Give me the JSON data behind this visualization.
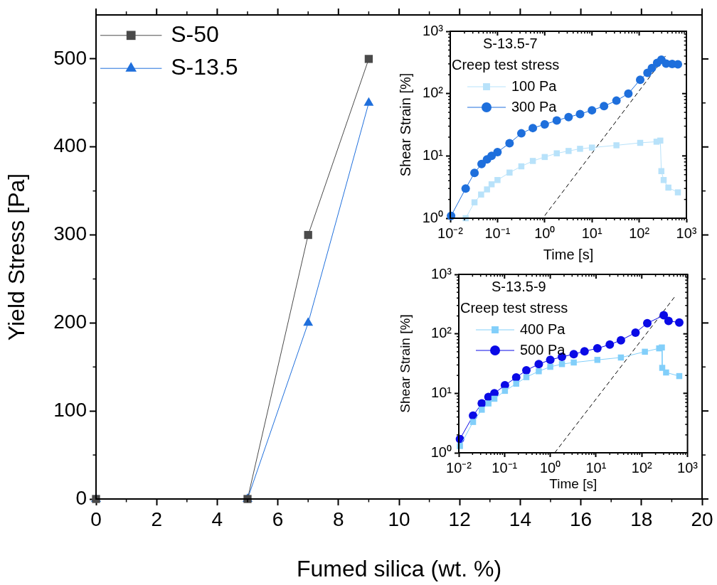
{
  "chart_data": [
    {
      "type": "line",
      "xlabel": "Fumed silica (wt. %)",
      "ylabel": "Yield Stress [Pa]",
      "xlim": [
        0,
        20
      ],
      "xticks": [
        0,
        2,
        4,
        6,
        8,
        10,
        12,
        14,
        16,
        18,
        20
      ],
      "ylim": [
        0,
        550
      ],
      "yticks": [
        0,
        100,
        200,
        300,
        400,
        500
      ],
      "grid": false,
      "legend": "top left",
      "x": [
        0,
        5,
        7,
        9
      ],
      "series": [
        {
          "name": "S-50",
          "color": "#4a4a4a",
          "marker": "square",
          "values": [
            0,
            0,
            300,
            500
          ]
        },
        {
          "name": "S-13.5",
          "color": "#1f6fdc",
          "marker": "triangle",
          "values": [
            0,
            0,
            200,
            450
          ]
        }
      ]
    },
    {
      "type": "line",
      "title": "S-13.5-7",
      "legend_title": "Creep test stress",
      "xlabel": "Time [s]",
      "ylabel": "Shear Strain [%]",
      "log": "xy",
      "xlim": [
        0.01,
        1000
      ],
      "ylim": [
        1,
        1000
      ],
      "xticks": [
        {
          "value": 0.01,
          "label": "10⁻²"
        },
        {
          "value": 0.1,
          "label": "10⁻¹"
        },
        {
          "value": 1,
          "label": "10⁰"
        },
        {
          "value": 10,
          "label": "10¹"
        },
        {
          "value": 100,
          "label": "10²"
        },
        {
          "value": 1000,
          "label": "10³"
        }
      ],
      "yticks": [
        {
          "value": 1,
          "label": "10⁰"
        },
        {
          "value": 10,
          "label": "10¹"
        },
        {
          "value": 100,
          "label": "10²"
        },
        {
          "value": 1000,
          "label": "10³"
        }
      ],
      "grid": false,
      "legend": "top left",
      "series": [
        {
          "name": "100 Pa",
          "color": "#b8e2fa",
          "marker": "square",
          "x": [
            0.0212,
            0.0326,
            0.045,
            0.06,
            0.075,
            0.1,
            0.18,
            0.32,
            0.56,
            1,
            1.8,
            3.2,
            5.6,
            10,
            33,
            105,
            233,
            280,
            295,
            330,
            415,
            660
          ],
          "values": [
            1,
            1.8,
            2.4,
            2.9,
            3.5,
            4.1,
            5.4,
            6.8,
            8.3,
            9.6,
            11,
            12,
            13,
            13.6,
            14.8,
            16.2,
            16.9,
            17.6,
            5.7,
            4.1,
            3.1,
            2.6
          ]
        },
        {
          "name": "300 Pa",
          "color": "#1e6fdc",
          "marker": "circle",
          "x": [
            0.0104,
            0.0212,
            0.0326,
            0.046,
            0.06,
            0.075,
            0.1,
            0.18,
            0.32,
            0.56,
            1,
            1.8,
            3.2,
            5.6,
            10,
            18,
            33,
            59,
            105,
            150,
            186,
            240,
            295,
            372,
            500,
            660
          ],
          "values": [
            1.09,
            3,
            5.35,
            7.4,
            8.8,
            10,
            11.5,
            16,
            23,
            28,
            32,
            37,
            42,
            47,
            54,
            63,
            77,
            100,
            167,
            215,
            257,
            310,
            350,
            302,
            298,
            295
          ]
        },
        {
          "type": "line",
          "color": "#000000",
          "marker": "none",
          "line_style": "dashed",
          "x": [
            1,
            360
          ],
          "values": [
            1.1,
            400
          ]
        }
      ]
    },
    {
      "type": "line",
      "title": "S-13.5-9",
      "legend_title": "Creep test stress",
      "xlabel": "Time [s]",
      "ylabel": "Shear Strain [%]",
      "log": "xy",
      "xlim": [
        0.01,
        1000
      ],
      "ylim": [
        1,
        1000
      ],
      "xticks": [
        {
          "value": 0.01,
          "label": "10⁻²"
        },
        {
          "value": 0.1,
          "label": "10⁻¹"
        },
        {
          "value": 1,
          "label": "10⁰"
        },
        {
          "value": 10,
          "label": "10¹"
        },
        {
          "value": 100,
          "label": "10²"
        },
        {
          "value": 1000,
          "label": "10³"
        }
      ],
      "yticks": [
        {
          "value": 1,
          "label": "10⁰"
        },
        {
          "value": 10,
          "label": "10¹"
        },
        {
          "value": 100,
          "label": "10²"
        },
        {
          "value": 1000,
          "label": "10³"
        }
      ],
      "grid": false,
      "legend": "top left",
      "series": [
        {
          "name": "400 Pa",
          "color": "#82cffa",
          "marker": "square",
          "x": [
            0.0106,
            0.0205,
            0.0318,
            0.0445,
            0.06,
            0.102,
            0.18,
            0.3,
            0.56,
            1,
            1.8,
            3.26,
            10.7,
            35,
            117,
            240,
            275,
            280,
            340,
            660
          ],
          "values": [
            1.3,
            3.3,
            5.3,
            6.75,
            8.1,
            11,
            14.5,
            18.7,
            23.5,
            27.9,
            31,
            33,
            36.5,
            40,
            50,
            57,
            59,
            26.8,
            22.4,
            19.5
          ]
        },
        {
          "name": "500 Pa",
          "color": "#0a0ae6",
          "marker": "circle",
          "x": [
            0.0106,
            0.0205,
            0.0318,
            0.0445,
            0.06,
            0.102,
            0.18,
            0.3,
            0.56,
            1,
            1.8,
            3.26,
            5.6,
            10.7,
            20,
            35,
            73,
            132,
            302,
            385,
            660
          ],
          "values": [
            1.7,
            4.2,
            6.75,
            8.65,
            10,
            13.7,
            18.5,
            24.4,
            31,
            36.5,
            41,
            45.5,
            51,
            57,
            66,
            78,
            105,
            151,
            205,
            165,
            155
          ]
        },
        {
          "type": "line",
          "color": "#000000",
          "marker": "none",
          "line_style": "dashed",
          "x": [
            1.25,
            550
          ],
          "values": [
            1,
            440
          ]
        }
      ]
    }
  ]
}
